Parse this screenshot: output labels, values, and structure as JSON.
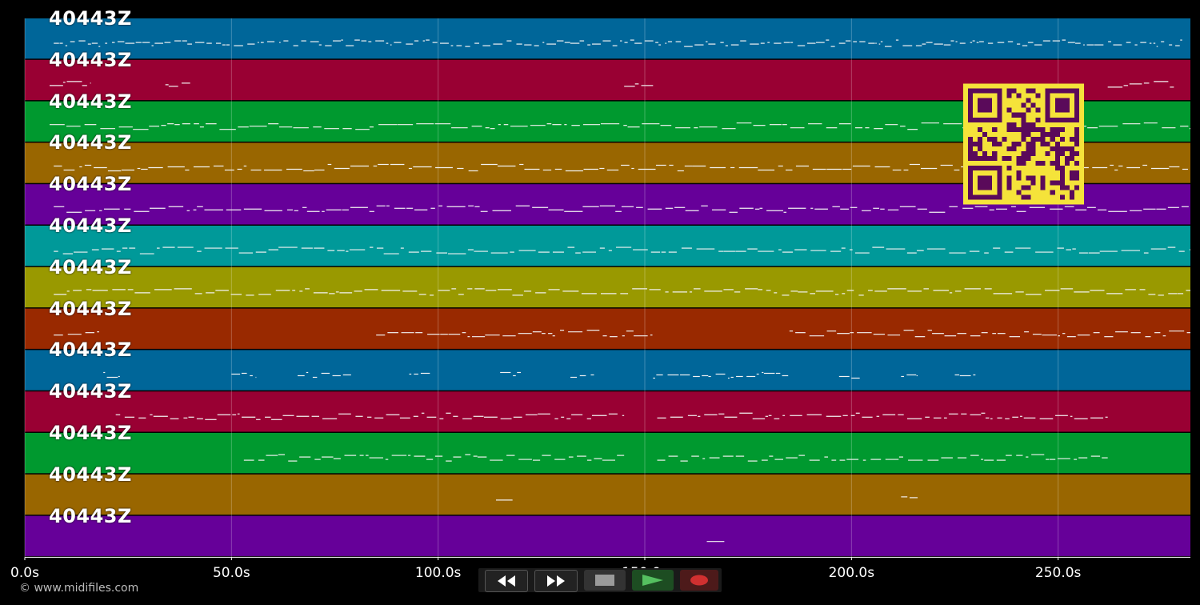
{
  "lanes": [
    {
      "label": "40443Z",
      "color": "#006699"
    },
    {
      "label": "40443Z",
      "color": "#990033"
    },
    {
      "label": "40443Z",
      "color": "#00992f"
    },
    {
      "label": "40443Z",
      "color": "#996600"
    },
    {
      "label": "40443Z",
      "color": "#660099"
    },
    {
      "label": "40443Z",
      "color": "#009999"
    },
    {
      "label": "40443Z",
      "color": "#999900"
    },
    {
      "label": "40443Z",
      "color": "#992900"
    },
    {
      "label": "40443Z",
      "color": "#006699"
    },
    {
      "label": "40443Z",
      "color": "#990033"
    },
    {
      "label": "40443Z",
      "color": "#00992f"
    },
    {
      "label": "40443Z",
      "color": "#996600"
    },
    {
      "label": "40443Z",
      "color": "#660099"
    }
  ],
  "x_axis": {
    "range": [
      0,
      282
    ],
    "ticks": [
      {
        "value": 0,
        "label": "0.0s"
      },
      {
        "value": 50,
        "label": "50.0s"
      },
      {
        "value": 100,
        "label": "100.0s"
      },
      {
        "value": 150,
        "label": "150.0s"
      },
      {
        "value": 200,
        "label": "200.0s"
      },
      {
        "value": 250,
        "label": "250.0s"
      }
    ]
  },
  "copyright": "© www.midifiles.com",
  "transport": {
    "buttons": [
      {
        "name": "rewind-button",
        "icon": "rewind-icon"
      },
      {
        "name": "fast-forward-button",
        "icon": "fast-forward-icon"
      },
      {
        "name": "stop-button",
        "icon": "stop-icon"
      },
      {
        "name": "play-button",
        "icon": "play-icon"
      },
      {
        "name": "record-button",
        "icon": "record-icon"
      }
    ]
  },
  "qr_colors": {
    "fg": "#5a0a5a",
    "bg": "#f5e33a"
  }
}
